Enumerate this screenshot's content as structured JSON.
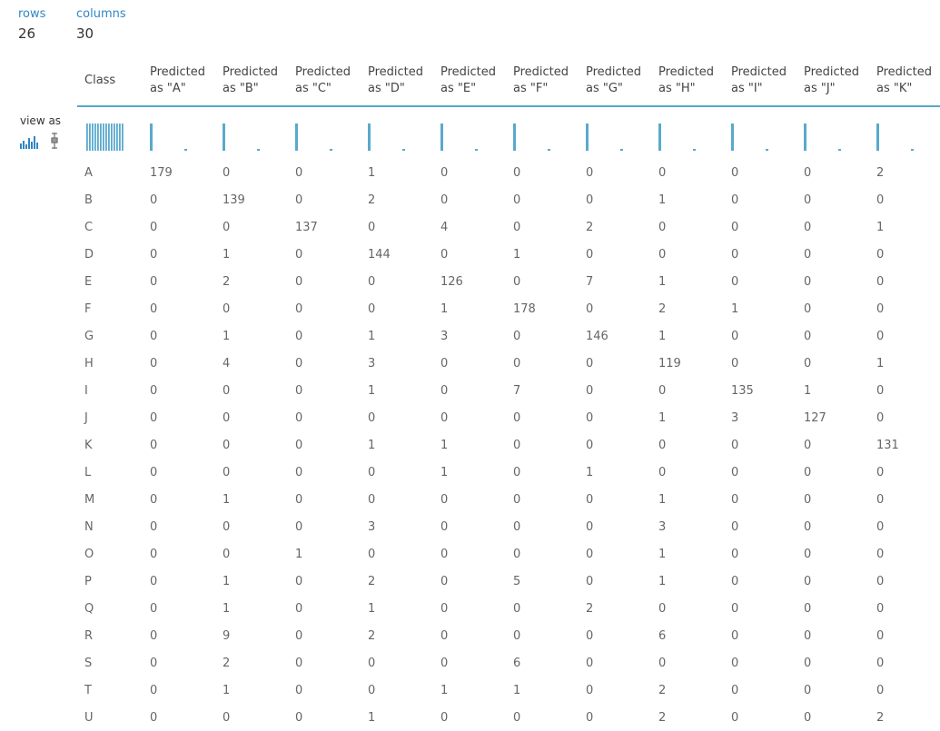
{
  "stats": {
    "rows_label": "rows",
    "rows_value": "26",
    "columns_label": "columns",
    "columns_value": "30"
  },
  "view_as_label": "view as",
  "view_as_icons": [
    "histogram-icon",
    "boxplot-icon"
  ],
  "accent_color": "#5aa9cc",
  "columns": [
    "Class",
    "Predicted as \"A\"",
    "Predicted as \"B\"",
    "Predicted as \"C\"",
    "Predicted as \"D\"",
    "Predicted as \"E\"",
    "Predicted as \"F\"",
    "Predicted as \"G\"",
    "Predicted as \"H\"",
    "Predicted as \"I\"",
    "Predicted as \"J\"",
    "Predicted as \"K\""
  ],
  "rows": [
    {
      "class": "A",
      "values": [
        "179",
        "0",
        "0",
        "1",
        "0",
        "0",
        "0",
        "0",
        "0",
        "0",
        "2"
      ]
    },
    {
      "class": "B",
      "values": [
        "0",
        "139",
        "0",
        "2",
        "0",
        "0",
        "0",
        "1",
        "0",
        "0",
        "0"
      ]
    },
    {
      "class": "C",
      "values": [
        "0",
        "0",
        "137",
        "0",
        "4",
        "0",
        "2",
        "0",
        "0",
        "0",
        "1"
      ]
    },
    {
      "class": "D",
      "values": [
        "0",
        "1",
        "0",
        "144",
        "0",
        "1",
        "0",
        "0",
        "0",
        "0",
        "0"
      ]
    },
    {
      "class": "E",
      "values": [
        "0",
        "2",
        "0",
        "0",
        "126",
        "0",
        "7",
        "1",
        "0",
        "0",
        "0"
      ]
    },
    {
      "class": "F",
      "values": [
        "0",
        "0",
        "0",
        "0",
        "1",
        "178",
        "0",
        "2",
        "1",
        "0",
        "0"
      ]
    },
    {
      "class": "G",
      "values": [
        "0",
        "1",
        "0",
        "1",
        "3",
        "0",
        "146",
        "1",
        "0",
        "0",
        "0"
      ]
    },
    {
      "class": "H",
      "values": [
        "0",
        "4",
        "0",
        "3",
        "0",
        "0",
        "0",
        "119",
        "0",
        "0",
        "1"
      ]
    },
    {
      "class": "I",
      "values": [
        "0",
        "0",
        "0",
        "1",
        "0",
        "7",
        "0",
        "0",
        "135",
        "1",
        "0"
      ]
    },
    {
      "class": "J",
      "values": [
        "0",
        "0",
        "0",
        "0",
        "0",
        "0",
        "0",
        "1",
        "3",
        "127",
        "0"
      ]
    },
    {
      "class": "K",
      "values": [
        "0",
        "0",
        "0",
        "1",
        "1",
        "0",
        "0",
        "0",
        "0",
        "0",
        "131"
      ]
    },
    {
      "class": "L",
      "values": [
        "0",
        "0",
        "0",
        "0",
        "1",
        "0",
        "1",
        "0",
        "0",
        "0",
        "0"
      ]
    },
    {
      "class": "M",
      "values": [
        "0",
        "1",
        "0",
        "0",
        "0",
        "0",
        "0",
        "1",
        "0",
        "0",
        "0"
      ]
    },
    {
      "class": "N",
      "values": [
        "0",
        "0",
        "0",
        "3",
        "0",
        "0",
        "0",
        "3",
        "0",
        "0",
        "0"
      ]
    },
    {
      "class": "O",
      "values": [
        "0",
        "0",
        "1",
        "0",
        "0",
        "0",
        "0",
        "1",
        "0",
        "0",
        "0"
      ]
    },
    {
      "class": "P",
      "values": [
        "0",
        "1",
        "0",
        "2",
        "0",
        "5",
        "0",
        "1",
        "0",
        "0",
        "0"
      ]
    },
    {
      "class": "Q",
      "values": [
        "0",
        "1",
        "0",
        "1",
        "0",
        "0",
        "2",
        "0",
        "0",
        "0",
        "0"
      ]
    },
    {
      "class": "R",
      "values": [
        "0",
        "9",
        "0",
        "2",
        "0",
        "0",
        "0",
        "6",
        "0",
        "0",
        "0"
      ]
    },
    {
      "class": "S",
      "values": [
        "0",
        "2",
        "0",
        "0",
        "0",
        "6",
        "0",
        "0",
        "0",
        "0",
        "0"
      ]
    },
    {
      "class": "T",
      "values": [
        "0",
        "1",
        "0",
        "0",
        "1",
        "1",
        "0",
        "2",
        "0",
        "0",
        "0"
      ]
    },
    {
      "class": "U",
      "values": [
        "0",
        "0",
        "0",
        "1",
        "0",
        "0",
        "0",
        "2",
        "0",
        "0",
        "2"
      ]
    }
  ]
}
